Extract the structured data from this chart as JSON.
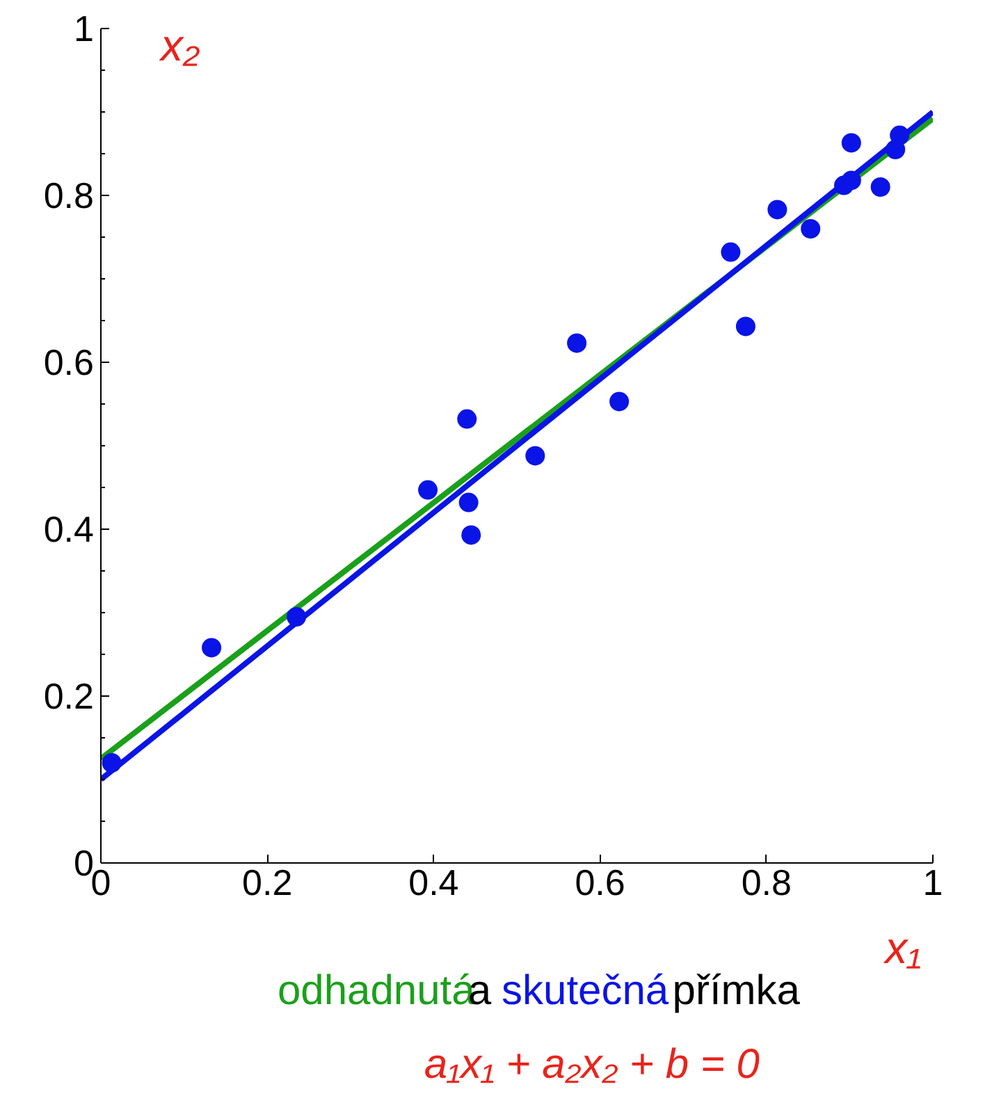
{
  "chart_data": {
    "type": "scatter",
    "xlim": [
      0,
      1
    ],
    "ylim": [
      0,
      1
    ],
    "xticks": [
      0,
      0.2,
      0.4,
      0.6,
      0.8,
      1
    ],
    "yticks": [
      0,
      0.2,
      0.4,
      0.6,
      0.8,
      1
    ],
    "grid": false,
    "series": [
      {
        "type": "line",
        "name": "odhadnutá",
        "color": "#1aa01a",
        "x": [
          0,
          1
        ],
        "values": [
          0.125,
          0.892
        ]
      },
      {
        "type": "line",
        "name": "skutečná",
        "color": "#0a14e6",
        "x": [
          0,
          1
        ],
        "values": [
          0.1,
          0.9
        ]
      },
      {
        "type": "scatter",
        "marker": "circle",
        "color": "#0a14e6",
        "x": [
          0.013,
          0.133,
          0.235,
          0.393,
          0.44,
          0.442,
          0.445,
          0.522,
          0.572,
          0.623,
          0.757,
          0.775,
          0.813,
          0.853,
          0.893,
          0.902,
          0.902,
          0.937,
          0.955,
          0.96
        ],
        "values": [
          0.12,
          0.258,
          0.295,
          0.447,
          0.532,
          0.432,
          0.393,
          0.488,
          0.623,
          0.553,
          0.732,
          0.643,
          0.783,
          0.76,
          0.812,
          0.863,
          0.818,
          0.81,
          0.855,
          0.872
        ]
      }
    ],
    "annotations": [
      "a",
      "přímka",
      "x₂",
      "x₁",
      "a₁x₁ + a₂x₂ + b = 0"
    ]
  }
}
